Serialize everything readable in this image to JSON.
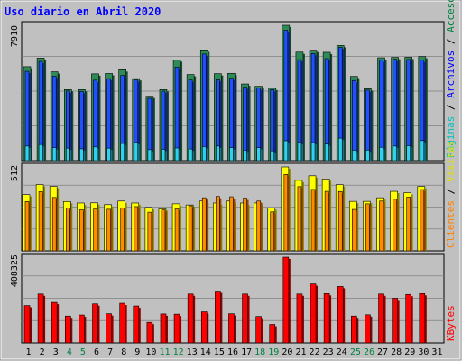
{
  "chart_data": {
    "type": "bar",
    "title": "Uso diario en Abril 2020",
    "x": {
      "categories": [
        "1",
        "2",
        "3",
        "4",
        "5",
        "6",
        "7",
        "8",
        "9",
        "10",
        "11",
        "12",
        "13",
        "14",
        "15",
        "16",
        "17",
        "18",
        "19",
        "20",
        "21",
        "22",
        "23",
        "24",
        "25",
        "26",
        "27",
        "28",
        "29",
        "30",
        "31"
      ],
      "weekend_categories": [
        "4",
        "5",
        "11",
        "12",
        "18",
        "19",
        "25",
        "26"
      ]
    },
    "panels": [
      {
        "name": "accesses-pages-files",
        "ymax_label": "7910",
        "ymax": 7910,
        "series": [
          {
            "name": "Accesos",
            "color": "#2e8b57",
            "values": [
              5490,
              5990,
              5190,
              4150,
              4150,
              5070,
              5090,
              5310,
              4790,
              3760,
              4150,
              5890,
              5030,
              6470,
              5080,
              5100,
              4480,
              4340,
              4230,
              7910,
              6340,
              6450,
              6330,
              6730,
              4920,
              4200,
              6010,
              6030,
              6040,
              6080,
              null
            ]
          },
          {
            "name": "Archivos",
            "color": "#2050ff",
            "values": [
              5220,
              5800,
              4940,
              4070,
              4040,
              4700,
              4790,
              4980,
              4720,
              3640,
              4060,
              5470,
              4710,
              6230,
              4730,
              4820,
              4300,
              4240,
              4150,
              7620,
              5900,
              6260,
              5960,
              6630,
              4680,
              4120,
              5880,
              5920,
              5910,
              5870,
              null
            ]
          },
          {
            "name": "Páginas",
            "color": "#30d0f0",
            "values": [
              850,
              940,
              760,
              730,
              690,
              800,
              730,
              1000,
              1060,
              640,
              660,
              740,
              680,
              820,
              850,
              760,
              610,
              760,
              570,
              1160,
              1060,
              1050,
              970,
              1310,
              610,
              620,
              780,
              850,
              870,
              1170,
              null
            ]
          }
        ]
      },
      {
        "name": "visits-clients",
        "ymax_label": "512",
        "ymax": 512,
        "series": [
          {
            "name": "Visitas",
            "color": "#ffff00",
            "values": [
              343,
              404,
              393,
              301,
              292,
              293,
              282,
              304,
              292,
              265,
              256,
              287,
              280,
              304,
              292,
              304,
              292,
              292,
              262,
              512,
              430,
              458,
              438,
              404,
              302,
              302,
              324,
              363,
              355,
              393,
              null
            ]
          },
          {
            "name": "Clientes",
            "color": "#ff8c00",
            "values": [
              301,
              361,
              326,
              262,
              251,
              255,
              254,
              262,
              270,
              236,
              250,
              256,
              275,
              324,
              332,
              330,
              322,
              304,
              238,
              466,
              392,
              375,
              363,
              362,
              253,
              287,
              304,
              315,
              328,
              374,
              null
            ]
          }
        ]
      },
      {
        "name": "kbytes",
        "ymax_label": "408325",
        "ymax": 408325,
        "series": [
          {
            "name": "KBytes",
            "color": "#ff0000",
            "values": [
              178000,
              233000,
              193000,
              128000,
              133000,
              186000,
              139000,
              189000,
              176000,
              98000,
              138000,
              137000,
              233000,
              148000,
              247000,
              139000,
              233000,
              126000,
              88000,
              408325,
              233000,
              281000,
              235000,
              269000,
              128000,
              134000,
              233000,
              213000,
              231000,
              235000,
              null
            ]
          }
        ]
      }
    ],
    "right_legend_top": {
      "separator": " / ",
      "items": [
        {
          "label": "Páginas",
          "color": "#00c0c0"
        },
        {
          "label": "Archivos",
          "color": "#0000ff"
        },
        {
          "label": "Accesos",
          "color": "#008040"
        }
      ]
    },
    "right_legend_mid": {
      "separator": " / ",
      "items": [
        {
          "label": "Clientes",
          "color": "#ff8000"
        },
        {
          "label": "Visitas",
          "color": "#e0e000"
        }
      ]
    },
    "right_legend_bottom": {
      "items": [
        {
          "label": "KBytes",
          "color": "#ff0000"
        }
      ]
    },
    "colors": {
      "frame_background": "#c0c0c0",
      "plot_background": "#c0c0c0",
      "title": "#0000ff",
      "tick_weekday": "#000000",
      "tick_weekend": "#008040",
      "separator": "#000000"
    }
  }
}
